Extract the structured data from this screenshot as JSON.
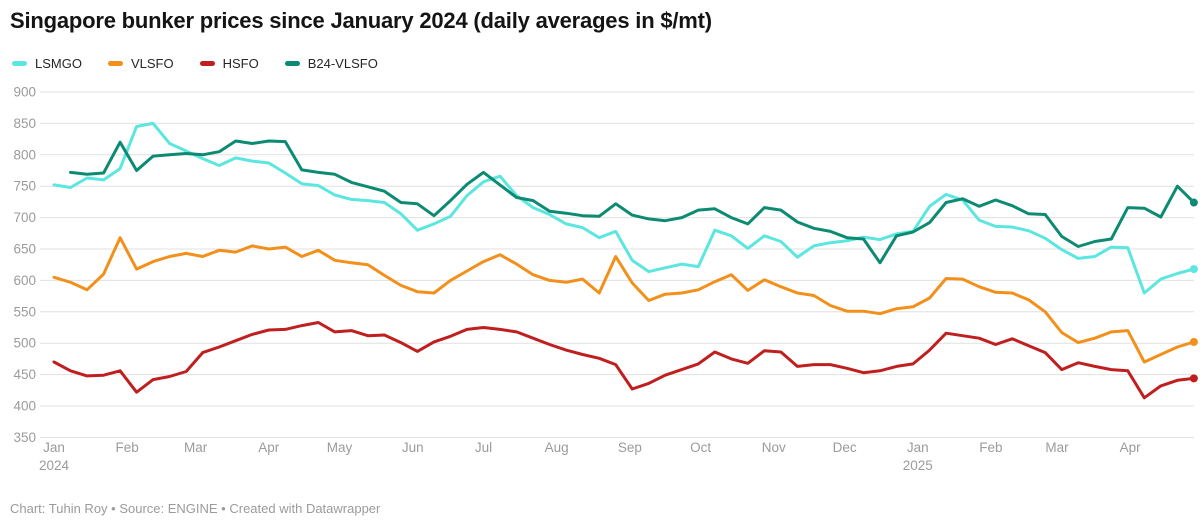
{
  "title": "Singapore bunker prices since January 2024 (daily averages in $/mt)",
  "footer": "Chart: Tuhin Roy • Source: ENGINE • Created with Datawrapper",
  "colors": {
    "grid": "#e0e0e0",
    "tick_text": "#9b9b9b",
    "title_text": "#141414"
  },
  "chart_data": {
    "type": "line",
    "title": "Singapore bunker prices since January 2024 (daily averages in $/mt)",
    "unit": "$/mt",
    "xlabel": "",
    "ylabel": "",
    "ylim": [
      350,
      900
    ],
    "grid": true,
    "legend_position": "top",
    "x_start_date": "2024-01-01",
    "sample_interval_days": 7,
    "y_ticks": [
      900,
      850,
      800,
      750,
      700,
      650,
      600,
      550,
      500,
      450,
      400,
      350
    ],
    "x_ticks": [
      {
        "label": "Jan",
        "year": "2024",
        "day": 0
      },
      {
        "label": "Feb",
        "day": 31
      },
      {
        "label": "Mar",
        "day": 60
      },
      {
        "label": "Apr",
        "day": 91
      },
      {
        "label": "May",
        "day": 121
      },
      {
        "label": "Jun",
        "day": 152
      },
      {
        "label": "Jul",
        "day": 182
      },
      {
        "label": "Aug",
        "day": 213
      },
      {
        "label": "Sep",
        "day": 244
      },
      {
        "label": "Oct",
        "day": 274
      },
      {
        "label": "Nov",
        "day": 305
      },
      {
        "label": "Dec",
        "day": 335
      },
      {
        "label": "Jan",
        "year": "2025",
        "day": 366
      },
      {
        "label": "Feb",
        "day": 397
      },
      {
        "label": "Mar",
        "day": 425
      },
      {
        "label": "Apr",
        "day": 456
      }
    ],
    "series": [
      {
        "name": "LSMGO",
        "color": "#5ce6e0",
        "start_day": 0,
        "values": [
          752,
          748,
          763,
          760,
          778,
          845,
          850,
          818,
          806,
          794,
          783,
          795,
          790,
          787,
          771,
          754,
          751,
          736,
          729,
          727,
          724,
          706,
          680,
          690,
          702,
          735,
          757,
          766,
          735,
          716,
          705,
          690,
          684,
          668,
          678,
          632,
          614,
          620,
          626,
          622,
          680,
          671,
          651,
          671,
          662,
          637,
          655,
          660,
          663,
          669,
          665,
          674,
          678,
          718,
          737,
          728,
          696,
          686,
          685,
          679,
          667,
          649,
          635,
          638,
          653,
          652,
          580,
          602,
          611,
          618
        ]
      },
      {
        "name": "VLSFO",
        "color": "#f2901b",
        "start_day": 0,
        "values": [
          605,
          597,
          585,
          610,
          668,
          618,
          630,
          638,
          643,
          638,
          648,
          645,
          655,
          650,
          653,
          638,
          648,
          632,
          628,
          625,
          608,
          592,
          582,
          580,
          600,
          615,
          630,
          641,
          626,
          609,
          600,
          597,
          602,
          580,
          638,
          596,
          568,
          578,
          580,
          585,
          598,
          609,
          584,
          601,
          590,
          580,
          576,
          560,
          551,
          551,
          547,
          555,
          558,
          572,
          603,
          602,
          590,
          581,
          580,
          569,
          550,
          517,
          501,
          508,
          518,
          520,
          470,
          482,
          494,
          502
        ]
      },
      {
        "name": "HSFO",
        "color": "#c01f1f",
        "start_day": 0,
        "values": [
          470,
          456,
          448,
          449,
          456,
          422,
          442,
          447,
          455,
          485,
          494,
          504,
          514,
          521,
          522,
          528,
          533,
          518,
          520,
          512,
          513,
          501,
          487,
          502,
          511,
          522,
          525,
          522,
          518,
          508,
          498,
          489,
          482,
          476,
          466,
          427,
          436,
          449,
          458,
          467,
          486,
          475,
          468,
          488,
          486,
          463,
          466,
          466,
          460,
          453,
          456,
          463,
          467,
          489,
          516,
          512,
          508,
          498,
          507,
          496,
          485,
          458,
          469,
          463,
          458,
          456,
          413,
          432,
          441,
          444
        ]
      },
      {
        "name": "B24-VLSFO",
        "color": "#0c8b72",
        "start_day": 7,
        "values": [
          772,
          769,
          771,
          820,
          775,
          798,
          800,
          802,
          800,
          805,
          822,
          818,
          822,
          821,
          776,
          772,
          769,
          756,
          749,
          742,
          724,
          722,
          703,
          727,
          753,
          772,
          752,
          732,
          727,
          710,
          707,
          703,
          702,
          722,
          704,
          698,
          695,
          700,
          712,
          714,
          700,
          690,
          716,
          712,
          693,
          683,
          678,
          668,
          666,
          628,
          671,
          677,
          692,
          724,
          730,
          718,
          728,
          719,
          706,
          705,
          670,
          654,
          662,
          666,
          716,
          715,
          701,
          750,
          724
        ]
      }
    ]
  }
}
